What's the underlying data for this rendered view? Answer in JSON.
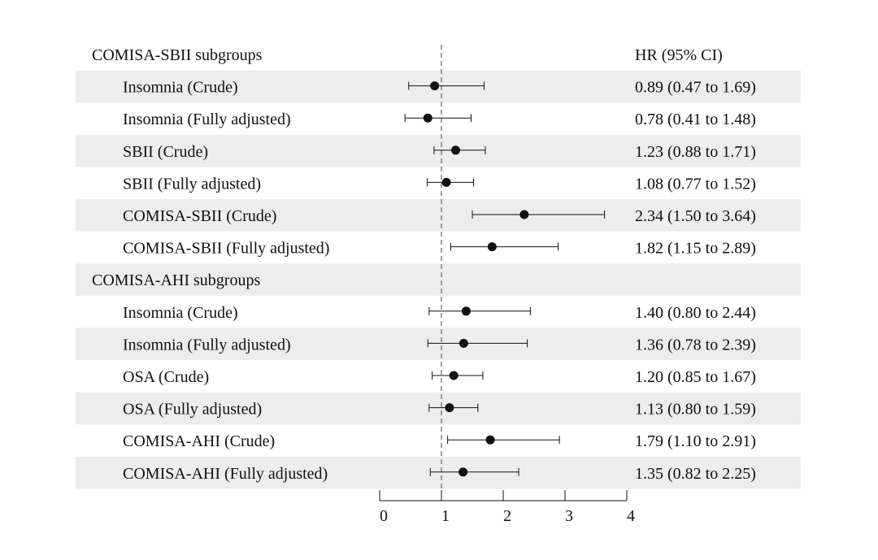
{
  "chart_data": {
    "type": "forest",
    "xlim": [
      0,
      4
    ],
    "reference_line": 1,
    "x_ticks": [
      "0",
      "1",
      "2",
      "3",
      "4"
    ],
    "hr_header": "HR (95% CI)",
    "groups": [
      {
        "title": "COMISA-SBII subgroups",
        "rows": [
          {
            "label": "Insomnia (Crude)",
            "hr": 0.89,
            "lo": 0.47,
            "hi": 1.69,
            "text": "0.89 (0.47 to 1.69)"
          },
          {
            "label": "Insomnia (Fully adjusted)",
            "hr": 0.78,
            "lo": 0.41,
            "hi": 1.48,
            "text": "0.78 (0.41 to 1.48)"
          },
          {
            "label": "SBII (Crude)",
            "hr": 1.23,
            "lo": 0.88,
            "hi": 1.71,
            "text": "1.23 (0.88 to 1.71)"
          },
          {
            "label": "SBII (Fully adjusted)",
            "hr": 1.08,
            "lo": 0.77,
            "hi": 1.52,
            "text": "1.08 (0.77 to 1.52)"
          },
          {
            "label": "COMISA-SBII (Crude)",
            "hr": 2.34,
            "lo": 1.5,
            "hi": 3.64,
            "text": "2.34 (1.50 to 3.64)"
          },
          {
            "label": "COMISA-SBII (Fully adjusted)",
            "hr": 1.82,
            "lo": 1.15,
            "hi": 2.89,
            "text": "1.82 (1.15 to 2.89)"
          }
        ]
      },
      {
        "title": "COMISA-AHI subgroups",
        "rows": [
          {
            "label": "Insomnia (Crude)",
            "hr": 1.4,
            "lo": 0.8,
            "hi": 2.44,
            "text": "1.40 (0.80 to 2.44)"
          },
          {
            "label": "Insomnia (Fully adjusted)",
            "hr": 1.36,
            "lo": 0.78,
            "hi": 2.39,
            "text": "1.36 (0.78 to 2.39)"
          },
          {
            "label": "OSA (Crude)",
            "hr": 1.2,
            "lo": 0.85,
            "hi": 1.67,
            "text": "1.20 (0.85 to 1.67)"
          },
          {
            "label": "OSA (Fully adjusted)",
            "hr": 1.13,
            "lo": 0.8,
            "hi": 1.59,
            "text": "1.13 (0.80 to 1.59)"
          },
          {
            "label": "COMISA-AHI (Crude)",
            "hr": 1.79,
            "lo": 1.1,
            "hi": 2.91,
            "text": "1.79 (1.10 to 2.91)"
          },
          {
            "label": "COMISA-AHI (Fully adjusted)",
            "hr": 1.35,
            "lo": 0.82,
            "hi": 2.25,
            "text": "1.35 (0.82 to 2.25)"
          }
        ]
      }
    ],
    "colors": {
      "stripe": "#ededed",
      "ink": "#111111",
      "refline": "#777777"
    }
  }
}
